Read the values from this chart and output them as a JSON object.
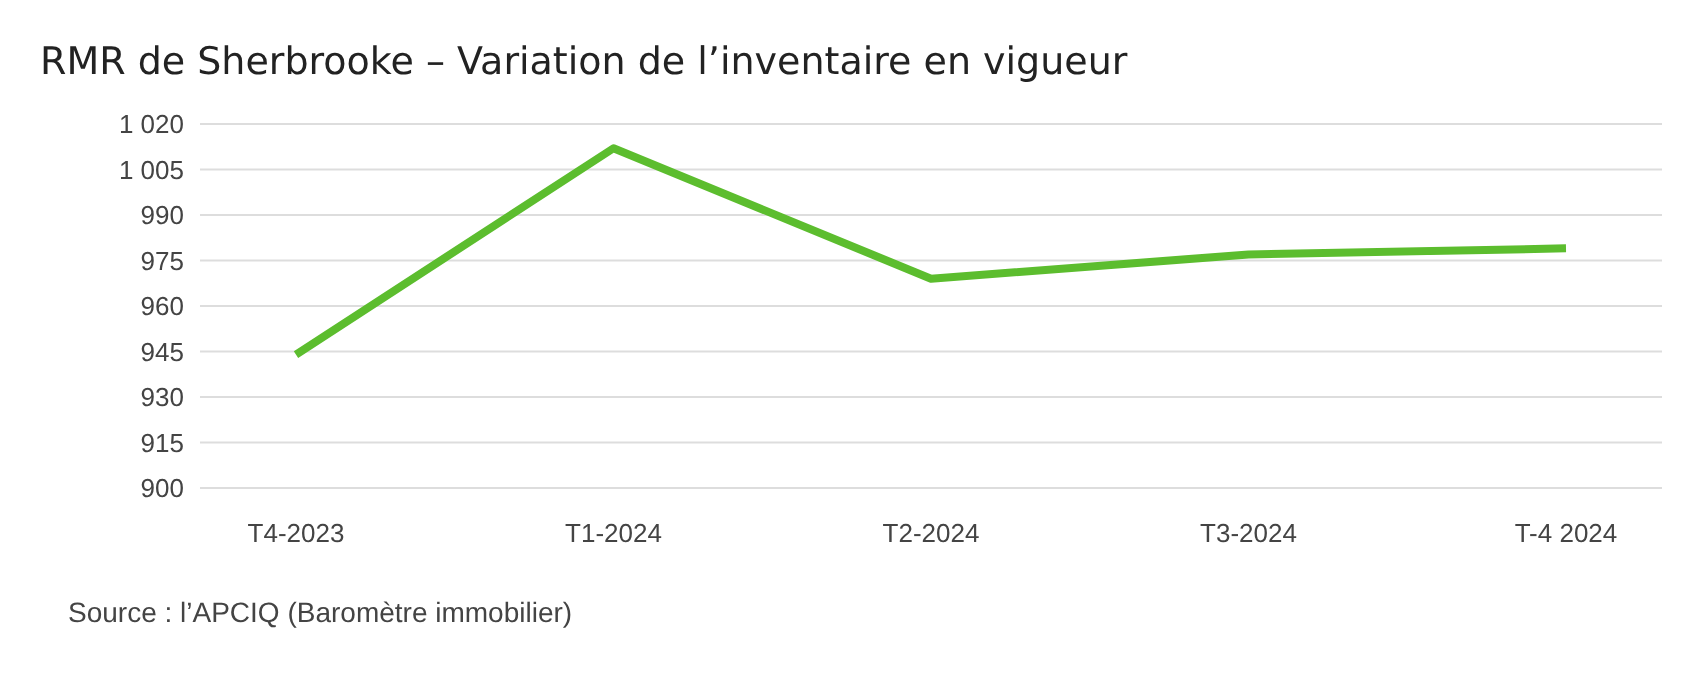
{
  "chart_data": {
    "type": "line",
    "title": "RMR de Sherbrooke – Variation de l’inventaire en vigueur",
    "categories": [
      "T4-2023",
      "T1-2024",
      "T2-2024",
      "T3-2024",
      "T-4 2024"
    ],
    "series": [
      {
        "color": "#5cbd2e",
        "values": [
          944,
          1012,
          969,
          977,
          979
        ]
      }
    ],
    "ylim": [
      900,
      1020
    ],
    "yticks": [
      900,
      915,
      930,
      945,
      960,
      975,
      {
        "value": 990,
        "label": "990"
      },
      {
        "value": 1005,
        "label": "1 005"
      },
      {
        "value": 1020,
        "label": "1 020"
      }
    ],
    "grid": "y",
    "legend": false,
    "marker": "none",
    "line_style": "solid",
    "annotations": [
      "Source : l’APCIQ (Baromètre immobilier)"
    ]
  }
}
